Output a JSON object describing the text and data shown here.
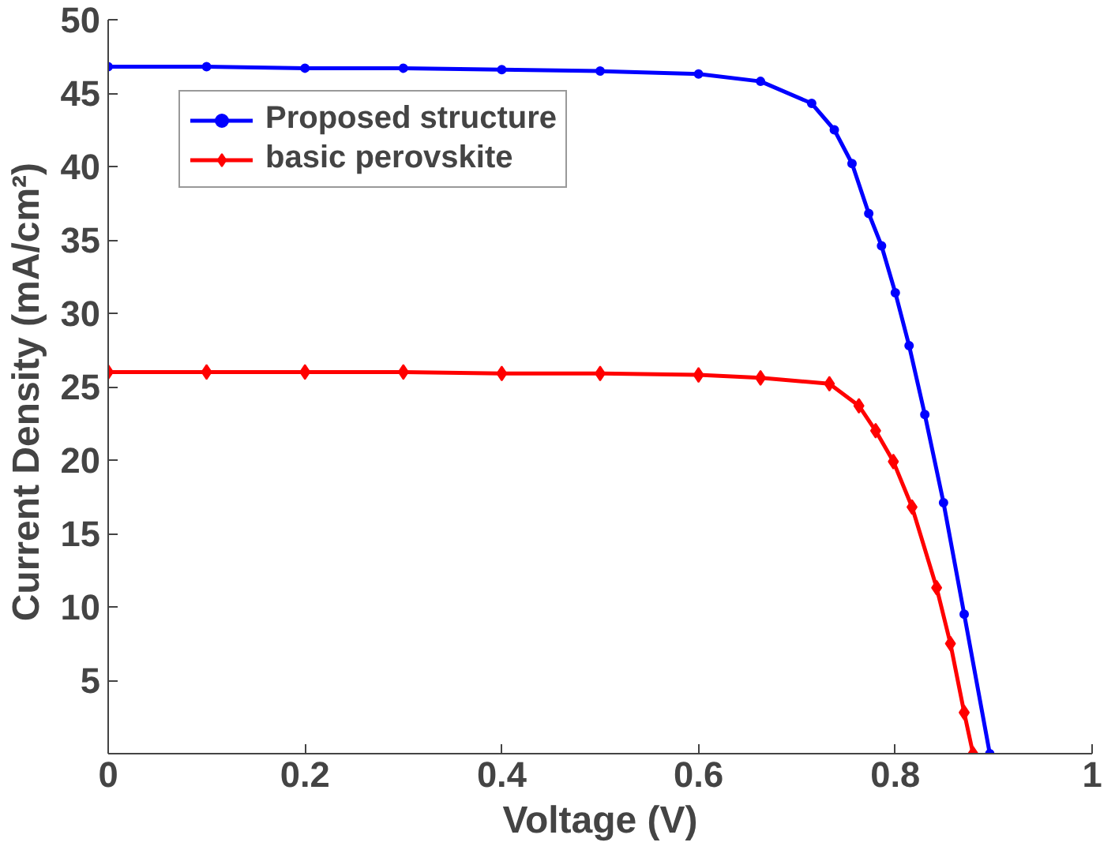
{
  "chart_data": {
    "type": "line",
    "xlabel": "Voltage (V)",
    "ylabel": "Current  Density (mA/cm²)",
    "xlim": [
      0,
      1
    ],
    "ylim": [
      0,
      50
    ],
    "xticks": [
      0,
      0.2,
      0.4,
      0.6,
      0.8,
      1
    ],
    "yticks": [
      5,
      10,
      15,
      20,
      25,
      30,
      35,
      40,
      45,
      50
    ],
    "grid": false,
    "legend": "top left",
    "line_style": "solid",
    "series": [
      {
        "name": "Proposed structure",
        "color": "#0000ff",
        "marker": "circle",
        "x": [
          0,
          0.1,
          0.2,
          0.3,
          0.4,
          0.5,
          0.6,
          0.663,
          0.715,
          0.738,
          0.756,
          0.773,
          0.786,
          0.8,
          0.814,
          0.83,
          0.849,
          0.87,
          0.896
        ],
        "values": [
          46.8,
          46.8,
          46.7,
          46.7,
          46.6,
          46.5,
          46.3,
          45.8,
          44.3,
          42.5,
          40.2,
          36.8,
          34.6,
          31.4,
          27.8,
          23.1,
          17.1,
          9.5,
          0
        ]
      },
      {
        "name": "basic perovskite",
        "color": "#ff0000",
        "marker": "diamond",
        "x": [
          0,
          0.1,
          0.2,
          0.3,
          0.4,
          0.5,
          0.6,
          0.663,
          0.733,
          0.763,
          0.78,
          0.798,
          0.817,
          0.842,
          0.856,
          0.87,
          0.879
        ],
        "values": [
          26,
          26,
          26,
          26,
          25.9,
          25.9,
          25.8,
          25.6,
          25.2,
          23.7,
          22,
          19.9,
          16.8,
          11.3,
          7.5,
          2.8,
          0
        ]
      }
    ]
  }
}
